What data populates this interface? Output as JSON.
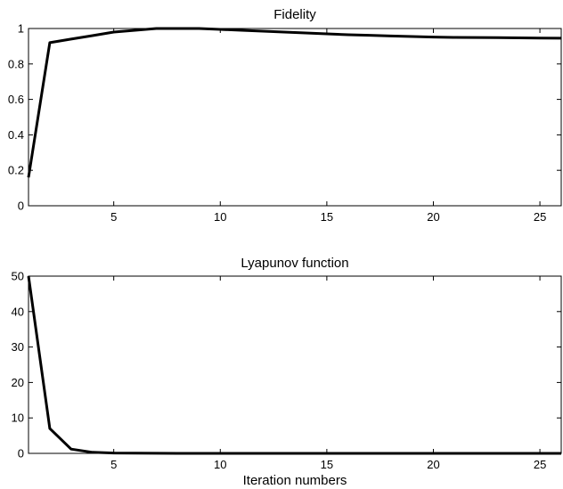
{
  "chart_data": [
    {
      "type": "line",
      "title": "Fidelity",
      "xlabel": "",
      "ylabel": "",
      "xlim": [
        1,
        26
      ],
      "ylim": [
        0,
        1
      ],
      "xticks": [
        5,
        10,
        15,
        20,
        25
      ],
      "yticks": [
        0,
        0.2,
        0.4,
        0.6,
        0.8,
        1
      ],
      "ytick_labels": [
        "0",
        "0.2",
        "0.4",
        "0.6",
        "0.8",
        "1"
      ],
      "grid": false,
      "series": [
        {
          "x": [
            1,
            2,
            3,
            4,
            5,
            6,
            7,
            8,
            9,
            10,
            11,
            12,
            13,
            14,
            15,
            16,
            17,
            18,
            19,
            20,
            21,
            22,
            23,
            24,
            25,
            26
          ],
          "values": [
            0.16,
            0.92,
            0.94,
            0.96,
            0.98,
            0.99,
            1.0,
            1.0,
            1.0,
            0.995,
            0.99,
            0.985,
            0.98,
            0.975,
            0.97,
            0.965,
            0.962,
            0.958,
            0.955,
            0.952,
            0.95,
            0.949,
            0.948,
            0.947,
            0.946,
            0.945
          ]
        }
      ]
    },
    {
      "type": "line",
      "title": "Lyapunov function",
      "xlabel": "Iteration numbers",
      "ylabel": "",
      "xlim": [
        1,
        26
      ],
      "ylim": [
        0,
        50
      ],
      "xticks": [
        5,
        10,
        15,
        20,
        25
      ],
      "yticks": [
        0,
        10,
        20,
        30,
        40,
        50
      ],
      "ytick_labels": [
        "0",
        "10",
        "20",
        "30",
        "40",
        "50"
      ],
      "grid": false,
      "series": [
        {
          "x": [
            1,
            2,
            3,
            4,
            5,
            6,
            7,
            8,
            9,
            10,
            11,
            12,
            13,
            14,
            15,
            16,
            17,
            18,
            19,
            20,
            21,
            22,
            23,
            24,
            25,
            26
          ],
          "values": [
            50,
            7,
            1.2,
            0.3,
            0.1,
            0.05,
            0.02,
            0.01,
            0,
            0,
            0,
            0,
            0,
            0,
            0,
            0,
            0,
            0,
            0,
            0,
            0,
            0,
            0,
            0,
            0,
            0
          ]
        }
      ]
    }
  ]
}
